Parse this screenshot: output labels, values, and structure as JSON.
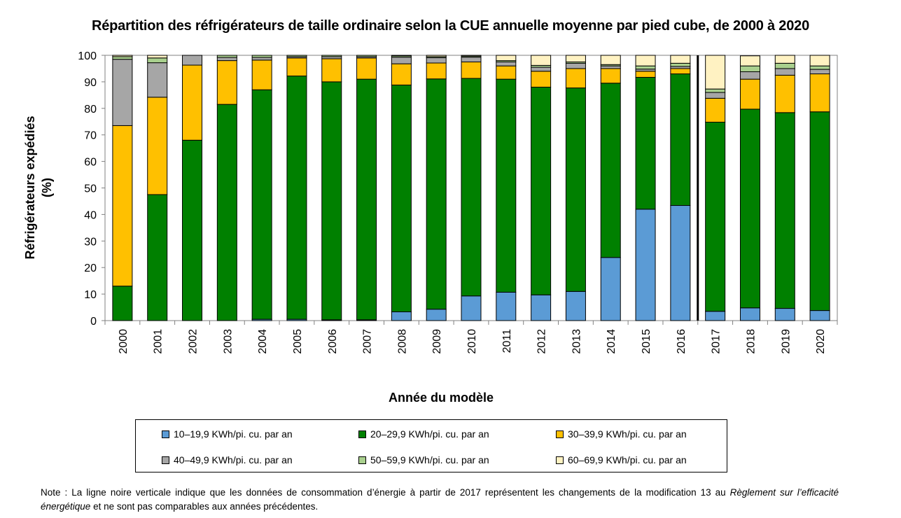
{
  "title": "Répartition des réfrigérateurs de taille ordinaire selon la CUE annuelle moyenne par pied cube, de 2000 à 2020",
  "ylabel_line1": "Réfrigérateurs expédiés",
  "ylabel_line2": "(%)",
  "xlabel": "Année du modèle",
  "note_part1": "Note : La ligne noire verticale indique que les données de consommation d’énergie à partir de 2017 représentent les changements de la modification 13 au",
  "note_italic": "Règlement sur l’efficacité énergétique",
  "note_part2": "et ne sont pas comparables aux années précédentes.",
  "chart_data": {
    "type": "bar",
    "stacked": true,
    "title": "Répartition des réfrigérateurs de taille ordinaire selon la CUE annuelle moyenne par pied cube, de 2000 à 2020",
    "xlabel": "Année du modèle",
    "ylabel": "Réfrigérateurs expédiés (%)",
    "ylim": [
      0,
      100
    ],
    "yticks": [
      0,
      10,
      20,
      30,
      40,
      50,
      60,
      70,
      80,
      90,
      100
    ],
    "grid": false,
    "legend_position": "bottom",
    "separator_after_category": "2016",
    "categories": [
      "2000",
      "2001",
      "2002",
      "2003",
      "2004",
      "2005",
      "2006",
      "2007",
      "2008",
      "2009",
      "2010",
      "2011",
      "2012",
      "2013",
      "2014",
      "2015",
      "2016",
      "2017",
      "2018",
      "2019",
      "2020"
    ],
    "series": [
      {
        "name": "10–19,9 KWh/pi. cu. par an",
        "color": "#5b9bd5",
        "values": [
          0,
          0,
          0,
          0,
          0.5,
          0.5,
          0.3,
          0.3,
          3.3,
          4.3,
          9.3,
          10.7,
          9.7,
          11.0,
          23.8,
          42.0,
          43.4,
          3.5,
          4.8,
          4.6,
          3.8
        ]
      },
      {
        "name": "20–29,9 KWh/pi. cu. par an",
        "color": "#008000",
        "values": [
          13.0,
          47.5,
          68.0,
          81.5,
          86.5,
          91.7,
          89.7,
          90.7,
          85.5,
          86.8,
          82.0,
          80.3,
          78.3,
          76.7,
          65.7,
          49.7,
          49.6,
          71.3,
          74.9,
          73.8,
          74.9
        ]
      },
      {
        "name": "30–39,9 KWh/pi. cu. par an",
        "color": "#ffc000",
        "values": [
          60.5,
          36.7,
          28.3,
          16.5,
          11.2,
          6.8,
          8.7,
          8.0,
          8.0,
          6.0,
          6.2,
          5.0,
          6.0,
          7.3,
          5.5,
          2.3,
          2.0,
          9.0,
          11.3,
          14.1,
          14.3
        ]
      },
      {
        "name": "40–49,9 KWh/pi. cu. par an",
        "color": "#a6a6a6",
        "values": [
          25.0,
          13.0,
          3.7,
          1.2,
          1.0,
          0.5,
          0.8,
          0.5,
          2.5,
          2.0,
          1.8,
          1.5,
          1.5,
          2.0,
          1.0,
          0.8,
          0.8,
          2.2,
          2.8,
          2.5,
          1.7
        ]
      },
      {
        "name": "50–59,9 KWh/pi. cu. par an",
        "color": "#a9d08e",
        "values": [
          1.0,
          1.8,
          0,
          0.8,
          0.8,
          0.5,
          0.5,
          0.5,
          0.5,
          0.4,
          0.4,
          0.5,
          0.7,
          0.5,
          0.5,
          1.2,
          1.2,
          1.3,
          2.2,
          2.0,
          1.3
        ]
      },
      {
        "name": "60–69,9 KWh/pi. cu. par an",
        "color": "#fff2c2",
        "values": [
          0.5,
          1.0,
          0,
          0,
          0,
          0,
          0,
          0,
          0.2,
          0.5,
          0.3,
          2.0,
          3.8,
          2.5,
          3.5,
          4.0,
          3.0,
          12.7,
          3.8,
          3.0,
          4.0
        ]
      }
    ]
  }
}
